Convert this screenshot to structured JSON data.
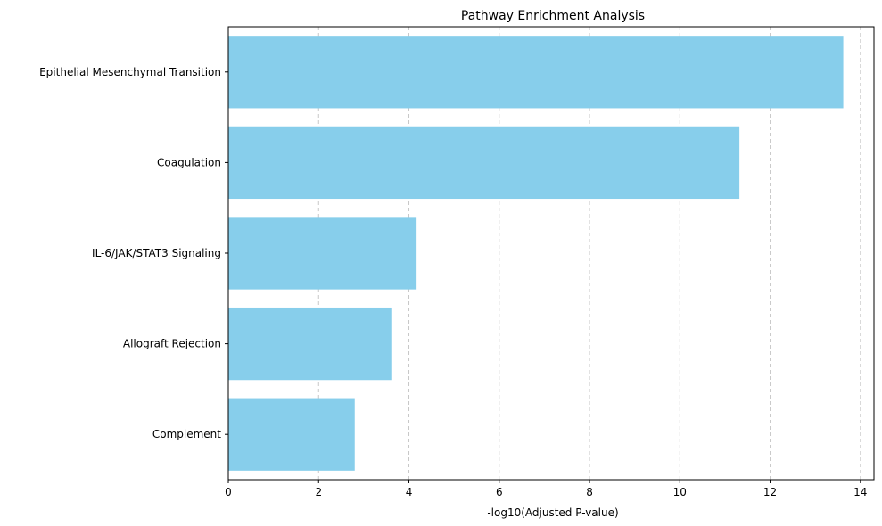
{
  "chart_data": {
    "type": "bar",
    "orientation": "horizontal",
    "title": "Pathway Enrichment Analysis",
    "xlabel": "-log10(Adjusted P-value)",
    "ylabel": "",
    "categories": [
      "Epithelial Mesenchymal Transition",
      "Coagulation",
      "IL-6/JAK/STAT3 Signaling",
      "Allograft Rejection",
      "Complement"
    ],
    "values": [
      13.62,
      11.32,
      4.17,
      3.61,
      2.8
    ],
    "xlim": [
      0,
      14.3
    ],
    "xticks": [
      "0",
      "2",
      "4",
      "6",
      "8",
      "10",
      "12",
      "14"
    ],
    "bar_color": "#87CEEB",
    "grid": "x-dashed",
    "legend": "none"
  }
}
